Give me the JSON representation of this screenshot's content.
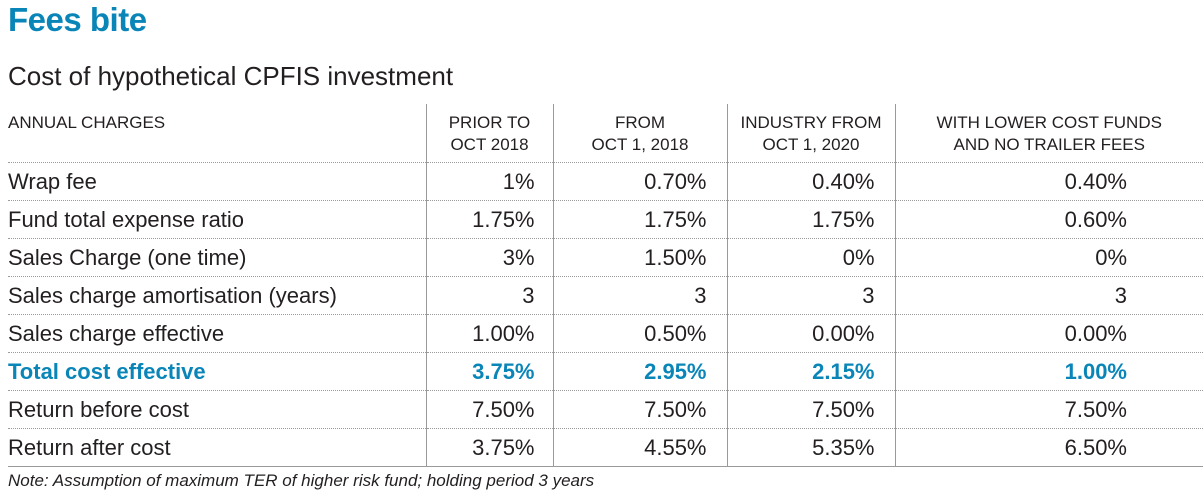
{
  "title": "Fees bite",
  "subtitle": "Cost of hypothetical CPFIS investment",
  "table": {
    "headers": [
      "ANNUAL CHARGES",
      [
        "PRIOR TO",
        "OCT 2018"
      ],
      [
        "FROM",
        "OCT 1, 2018"
      ],
      [
        "INDUSTRY FROM",
        "OCT 1, 2020"
      ],
      [
        "WITH LOWER COST FUNDS",
        "AND NO TRAILER FEES"
      ]
    ],
    "rows": [
      {
        "label": "Wrap fee",
        "values": [
          "1%",
          "0.70%",
          "0.40%",
          "0.40%"
        ]
      },
      {
        "label": "Fund total expense ratio",
        "values": [
          "1.75%",
          "1.75%",
          "1.75%",
          "0.60%"
        ]
      },
      {
        "label": "Sales Charge (one time)",
        "values": [
          "3%",
          "1.50%",
          "0%",
          "0%"
        ]
      },
      {
        "label": "Sales charge amortisation (years)",
        "values": [
          "3",
          "3",
          "3",
          "3"
        ]
      },
      {
        "label": "Sales charge effective",
        "values": [
          "1.00%",
          "0.50%",
          "0.00%",
          "0.00%"
        ]
      },
      {
        "label": "Total cost effective",
        "values": [
          "3.75%",
          "2.95%",
          "2.15%",
          "1.00%"
        ]
      },
      {
        "label": "Return before cost",
        "values": [
          "7.50%",
          "7.50%",
          "7.50%",
          "7.50%"
        ]
      },
      {
        "label": "Return after cost",
        "values": [
          "3.75%",
          "4.55%",
          "5.35%",
          "6.50%"
        ]
      }
    ]
  },
  "note": "Note: Assumption of maximum TER of higher risk fund; holding period 3 years",
  "colors": {
    "accent": "#0a85b8",
    "text": "#231f20",
    "rule": "#9a9a9a"
  }
}
